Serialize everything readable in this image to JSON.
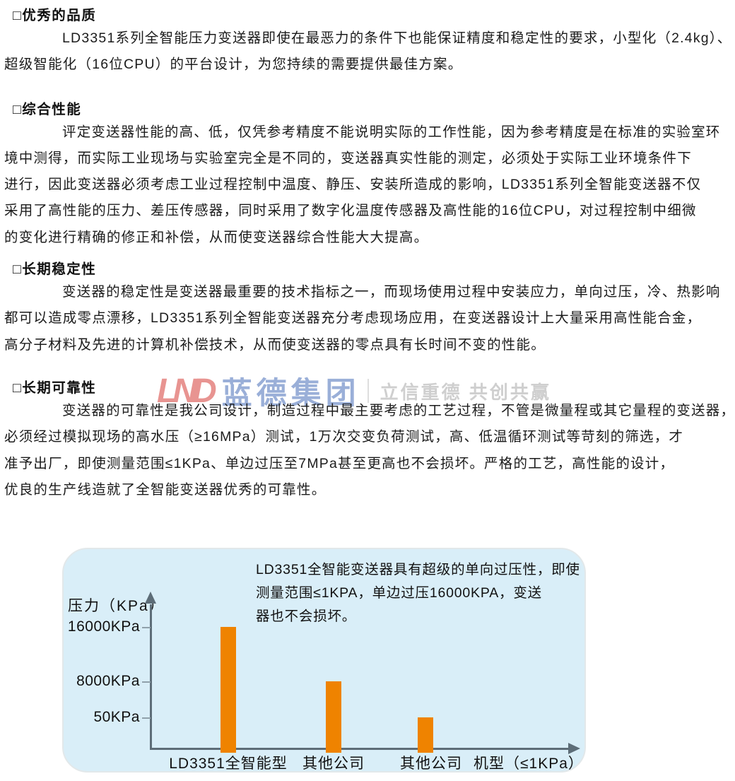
{
  "sections": [
    {
      "heading": "□优秀的品质",
      "lines": [
        "LD3351系列全智能压力变送器即使在最恶力的条件下也能保证精度和稳定性的要求，小型化（2.4kg）、",
        "超级智能化（16位CPU）的平台设计，为您持续的需要提供最佳方案。"
      ]
    },
    {
      "heading": "□综合性能",
      "lines": [
        "评定变送器性能的高、低，仅凭参考精度不能说明实际的工作性能，因为参考精度是在标准的实验室环",
        "境中测得，而实际工业现场与实验室完全是不同的，变送器真实性能的测定，必须处于实际工业环境条件下",
        "进行，因此变送器必须考虑工业过程控制中温度、静压、安装所造成的影响，LD3351系列全智能变送器不仅",
        "采用了高性能的压力、差压传感器，同时采用了数字化温度传感器及高性能的16位CPU，对过程控制中细微",
        "的变化进行精确的修正和补偿，从而使变送器综合性能大大提高。"
      ]
    },
    {
      "heading": "□长期稳定性",
      "lines": [
        "变送器的稳定性是变送器最重要的技术指标之一，而现场使用过程中安装应力，单向过压，冷、热影响",
        "都可以造成零点漂移，LD3351系列全智能变送器充分考虑现场应用，在变送器设计上大量采用高性能合金，",
        "高分子材料及先进的计算机补偿技术，从而使变送器的零点具有长时间不变的性能。"
      ]
    },
    {
      "heading": "□长期可靠性",
      "lines": [
        "变送器的可靠性是我公司设计，制造过程中最主要考虑的工艺过程，不管是微量程或其它量程的变送器，",
        "必须经过模拟现场的高水压（≥16MPa）测试，1万次交变负荷测试，高、低温循环测试等苛刻的筛选，才",
        "准予出厂，即使测量范围≤1KPa、单边过压至7MPa甚至更高也不会损坏。严格的工艺，高性能的设计，",
        "优良的生产线造就了全智能变送器优秀的可靠性。"
      ]
    }
  ],
  "watermark": {
    "logo_text": "LND",
    "company": "蓝德集团",
    "slogan": "立信重德 共创共赢",
    "logo_color": "#e5827e",
    "company_color": "#89a2d2",
    "slogan_color": "#c7c7c7"
  },
  "chart": {
    "annotation_lines": [
      "LD3351全智能变送器具有超级的单向过压性，即使",
      "测量范围≤1KPA，单边过压16000KPA，变送",
      "器也不会损坏。"
    ],
    "y_axis_label": "压力（KPa）",
    "tick_labels": [
      "16000KPa",
      "8000KPa",
      "50KPa"
    ],
    "x_labels": [
      "LD3351全智能型",
      "其他公司",
      "其他公司"
    ],
    "x_axis_label": "机型（≤1KPa）",
    "bar_color": "#ef8300",
    "panel_bg_color": "#d9eef8",
    "axis_color": "#5d6d78"
  },
  "chart_data": {
    "type": "bar",
    "categories": [
      "LD3351全智能型",
      "其他公司",
      "其他公司"
    ],
    "values": [
      16000,
      8000,
      50
    ],
    "unit": "KPa",
    "title": "",
    "xlabel": "机型（≤1KPa）",
    "ylabel": "压力（KPa）",
    "yticks": [
      "16000KPa",
      "8000KPa",
      "50KPa"
    ],
    "legend": false,
    "grid": false,
    "annotation": "LD3351全智能变送器具有超级的单向过压性，即使测量范围≤1KPA，单边过压16000KPA，变送器也不会损坏。"
  }
}
